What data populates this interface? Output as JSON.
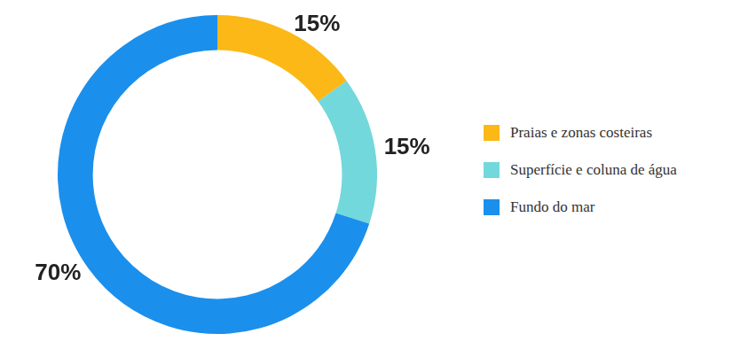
{
  "chart_data": {
    "type": "doughnut",
    "categories": [
      "Praias e zonas costeiras",
      "Superfície e coluna de água",
      "Fundo do mar"
    ],
    "values": [
      15,
      15,
      70
    ],
    "value_labels": [
      "15%",
      "15%",
      "70%"
    ],
    "colors": [
      "#fbb817",
      "#72d8dc",
      "#1b8fec"
    ],
    "data_labels": true,
    "legend": "right"
  }
}
